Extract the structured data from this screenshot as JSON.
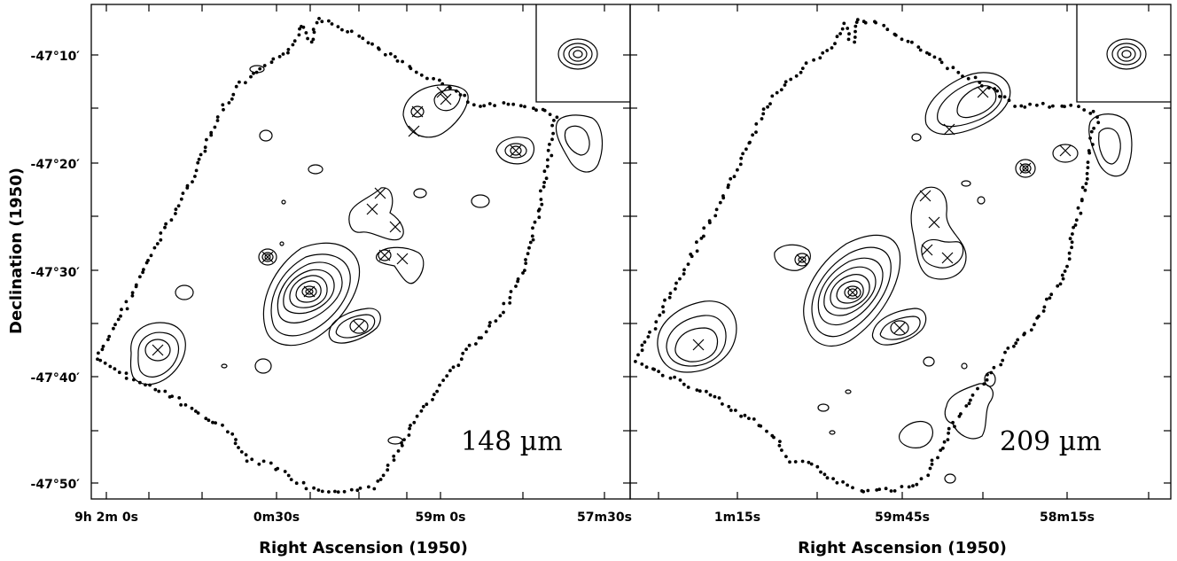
{
  "chart_data": [
    {
      "type": "contour",
      "panel": "left",
      "wavelength_label": "148 µm",
      "xlabel": "Right Ascension (1950)",
      "ylabel": "Declination (1950)",
      "x_tick_labels": [
        "9h 2m 0s",
        "0m30s",
        "59m 0s",
        "57m30s"
      ],
      "y_tick_labels": [
        "-47°10′",
        "-47°20′",
        "-47°30′",
        "-47°40′",
        "-47°50′"
      ],
      "beam_inset": true
    },
    {
      "type": "contour",
      "panel": "right",
      "wavelength_label": "209 µm",
      "xlabel": "Right Ascension (1950)",
      "x_tick_labels": [
        "1m15s",
        "59m45s",
        "58m15s"
      ],
      "beam_inset": true
    }
  ]
}
